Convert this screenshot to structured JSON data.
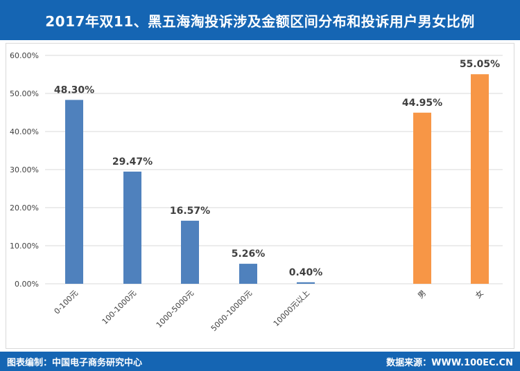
{
  "title": "2017年双11、黑五海淘投诉涉及金额区间分布和投诉用户男女比例",
  "footer": {
    "left": "图表编制：中国电子商务研究中心",
    "right": "数据来源：WWW.100EC.CN"
  },
  "colors": {
    "header_bg": "#1565b3",
    "amount_series": "#4f81bd",
    "gender_series": "#f79646"
  },
  "chart_data": {
    "type": "bar",
    "ylim": [
      0,
      60
    ],
    "ytick_values": [
      0,
      10,
      20,
      30,
      40,
      50,
      60
    ],
    "ytick_labels": [
      "0.00%",
      "10.00%",
      "20.00%",
      "30.00%",
      "40.00%",
      "50.00%",
      "60.00%"
    ],
    "grid": "horizontal",
    "legend": "none",
    "bars": [
      {
        "category": "0-100元",
        "value": 48.3,
        "label": "48.30%",
        "group": "amount"
      },
      {
        "category": "100-1000元",
        "value": 29.47,
        "label": "29.47%",
        "group": "amount"
      },
      {
        "category": "1000-5000元",
        "value": 16.57,
        "label": "16.57%",
        "group": "amount"
      },
      {
        "category": "5000-10000元",
        "value": 5.26,
        "label": "5.26%",
        "group": "amount"
      },
      {
        "category": "10000元以上",
        "value": 0.4,
        "label": "0.40%",
        "group": "amount"
      },
      {
        "category": "男",
        "value": 44.95,
        "label": "44.95%",
        "group": "gender"
      },
      {
        "category": "女",
        "value": 55.05,
        "label": "55.05%",
        "group": "gender"
      }
    ]
  }
}
